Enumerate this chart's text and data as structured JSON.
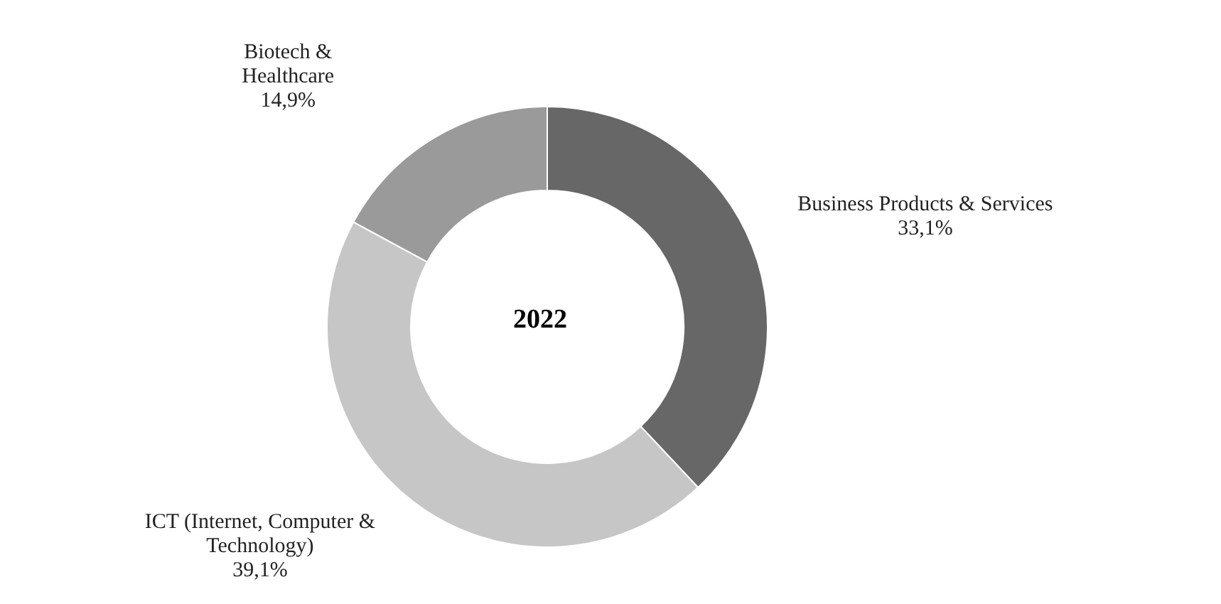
{
  "chart_data": {
    "type": "donut",
    "title": "2022",
    "categories": [
      "Business Products & Services",
      "ICT (Internet, Computer & Technology)",
      "Biotech & Healthcare"
    ],
    "values": [
      33.1,
      39.1,
      14.9
    ],
    "value_labels": [
      "33,1%",
      "39,1%",
      "14,9%"
    ],
    "colors": [
      "#676767",
      "#c6c6c6",
      "#9a9a9a"
    ],
    "legend": false
  }
}
